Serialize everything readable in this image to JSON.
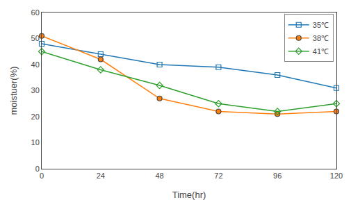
{
  "chart_data": {
    "type": "line",
    "x": [
      0,
      24,
      48,
      72,
      96,
      120
    ],
    "series": [
      {
        "name": "35℃",
        "values": [
          48,
          44,
          40,
          39,
          36,
          31
        ],
        "marker": "square-open"
      },
      {
        "name": "38℃",
        "values": [
          51,
          42,
          27,
          22,
          21,
          22
        ],
        "marker": "circle"
      },
      {
        "name": "41℃",
        "values": [
          45,
          38,
          32,
          25,
          22,
          25
        ],
        "marker": "diamond-open"
      }
    ],
    "xlabel": "Time(hr)",
    "ylabel": "moistuer(%)",
    "xlim": [
      0,
      120
    ],
    "ylim": [
      0,
      60
    ],
    "xticks": [
      0,
      24,
      48,
      72,
      96,
      120
    ],
    "yticks": [
      0,
      10,
      20,
      30,
      40,
      50,
      60
    ],
    "legend": "upper right",
    "grid": false,
    "background_color": "#ffffff"
  }
}
